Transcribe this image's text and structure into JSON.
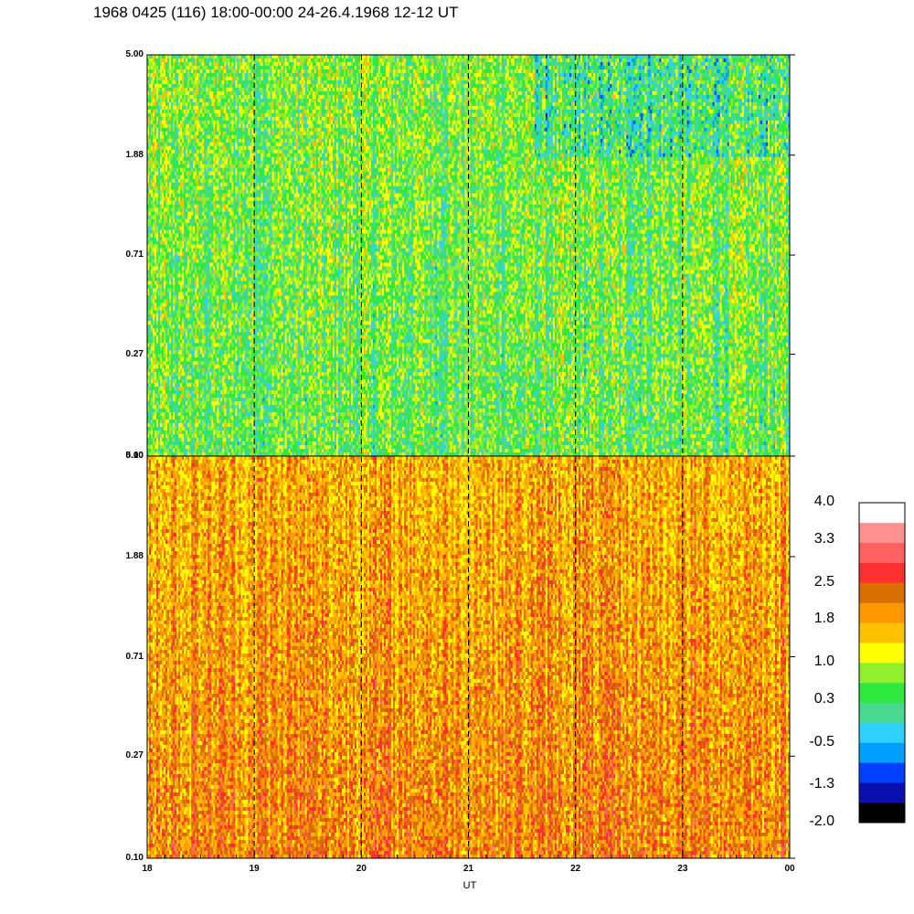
{
  "title": "1968 0425 (116) 18:00-00:00 24-26.4.1968  12-12 UT",
  "chart_data": {
    "type": "heatmap",
    "title": "1968 0425 (116) 18:00-00:00 24-26.4.1968  12-12 UT",
    "xlabel": "UT",
    "x_tick_labels": [
      "18",
      "19",
      "20",
      "21",
      "22",
      "23",
      "00"
    ],
    "y_scale": "log",
    "y_tick_labels": [
      "5.00",
      "1.88",
      "0.71",
      "0.27",
      "0.10"
    ],
    "yrange": [
      0.1,
      5.0
    ],
    "xrange_hours": [
      18,
      24
    ],
    "dashed_hour_lines": [
      "19",
      "20",
      "21",
      "22",
      "23"
    ],
    "panels": [
      {
        "position": "top",
        "dominant_level": 0.6,
        "level_range": [
          -1.3,
          1.8
        ]
      },
      {
        "position": "bottom",
        "dominant_level": 1.9,
        "level_range": [
          1.0,
          3.3
        ]
      }
    ],
    "colorbar": {
      "placement": "right",
      "tick_labels": [
        "4.0",
        "3.3",
        "2.5",
        "1.8",
        "1.0",
        "0.3",
        "-0.5",
        "-1.3",
        "-2.0"
      ],
      "range": [
        -2.0,
        4.0
      ],
      "colors": [
        "#000000",
        "#0a10b0",
        "#0040ff",
        "#00a0ff",
        "#30d0ff",
        "#48d890",
        "#30e840",
        "#90f030",
        "#ffff00",
        "#ffc000",
        "#ff9800",
        "#d87000",
        "#ff3030",
        "#ff6060",
        "#ff9090",
        "#ffffff"
      ]
    }
  }
}
